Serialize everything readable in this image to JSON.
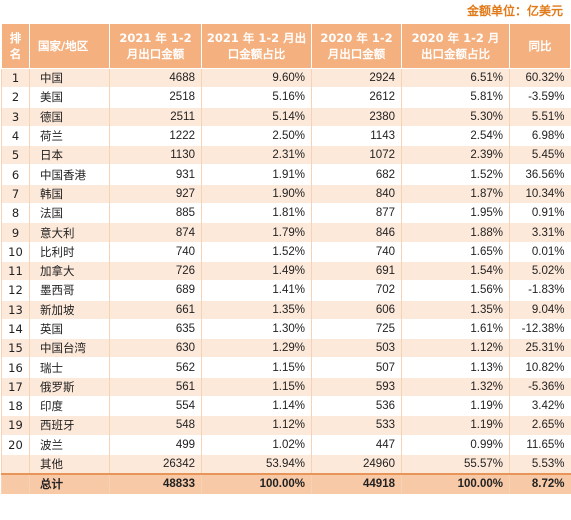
{
  "unit_label": "金额单位：亿美元",
  "headers": {
    "rank": "排名",
    "country": "国家/地区",
    "export_2021": "2021 年 1-2 月出口金额",
    "share_2021": "2021 年 1-2 月出口金额占比",
    "export_2020": "2020 年 1-2 月出口金额",
    "share_2020": "2020 年 1-2 月出口金额占比",
    "yoy": "同比"
  },
  "rows": [
    {
      "rank": "1",
      "country": "中国",
      "export_2021": "4688",
      "share_2021": "9.60%",
      "export_2020": "2924",
      "share_2020": "6.51%",
      "yoy": "60.32%"
    },
    {
      "rank": "2",
      "country": "美国",
      "export_2021": "2518",
      "share_2021": "5.16%",
      "export_2020": "2612",
      "share_2020": "5.81%",
      "yoy": "-3.59%"
    },
    {
      "rank": "3",
      "country": "德国",
      "export_2021": "2511",
      "share_2021": "5.14%",
      "export_2020": "2380",
      "share_2020": "5.30%",
      "yoy": "5.51%"
    },
    {
      "rank": "4",
      "country": "荷兰",
      "export_2021": "1222",
      "share_2021": "2.50%",
      "export_2020": "1143",
      "share_2020": "2.54%",
      "yoy": "6.98%"
    },
    {
      "rank": "5",
      "country": "日本",
      "export_2021": "1130",
      "share_2021": "2.31%",
      "export_2020": "1072",
      "share_2020": "2.39%",
      "yoy": "5.45%"
    },
    {
      "rank": "6",
      "country": "中国香港",
      "export_2021": "931",
      "share_2021": "1.91%",
      "export_2020": "682",
      "share_2020": "1.52%",
      "yoy": "36.56%"
    },
    {
      "rank": "7",
      "country": "韩国",
      "export_2021": "927",
      "share_2021": "1.90%",
      "export_2020": "840",
      "share_2020": "1.87%",
      "yoy": "10.34%"
    },
    {
      "rank": "8",
      "country": "法国",
      "export_2021": "885",
      "share_2021": "1.81%",
      "export_2020": "877",
      "share_2020": "1.95%",
      "yoy": "0.91%"
    },
    {
      "rank": "9",
      "country": "意大利",
      "export_2021": "874",
      "share_2021": "1.79%",
      "export_2020": "846",
      "share_2020": "1.88%",
      "yoy": "3.31%"
    },
    {
      "rank": "10",
      "country": "比利时",
      "export_2021": "740",
      "share_2021": "1.52%",
      "export_2020": "740",
      "share_2020": "1.65%",
      "yoy": "0.01%"
    },
    {
      "rank": "11",
      "country": "加拿大",
      "export_2021": "726",
      "share_2021": "1.49%",
      "export_2020": "691",
      "share_2020": "1.54%",
      "yoy": "5.02%"
    },
    {
      "rank": "12",
      "country": "墨西哥",
      "export_2021": "689",
      "share_2021": "1.41%",
      "export_2020": "702",
      "share_2020": "1.56%",
      "yoy": "-1.83%"
    },
    {
      "rank": "13",
      "country": "新加坡",
      "export_2021": "661",
      "share_2021": "1.35%",
      "export_2020": "606",
      "share_2020": "1.35%",
      "yoy": "9.04%"
    },
    {
      "rank": "14",
      "country": "英国",
      "export_2021": "635",
      "share_2021": "1.30%",
      "export_2020": "725",
      "share_2020": "1.61%",
      "yoy": "-12.38%"
    },
    {
      "rank": "15",
      "country": "中国台湾",
      "export_2021": "630",
      "share_2021": "1.29%",
      "export_2020": "503",
      "share_2020": "1.12%",
      "yoy": "25.31%"
    },
    {
      "rank": "16",
      "country": "瑞士",
      "export_2021": "562",
      "share_2021": "1.15%",
      "export_2020": "507",
      "share_2020": "1.13%",
      "yoy": "10.82%"
    },
    {
      "rank": "17",
      "country": "俄罗斯",
      "export_2021": "561",
      "share_2021": "1.15%",
      "export_2020": "593",
      "share_2020": "1.32%",
      "yoy": "-5.36%"
    },
    {
      "rank": "18",
      "country": "印度",
      "export_2021": "554",
      "share_2021": "1.14%",
      "export_2020": "536",
      "share_2020": "1.19%",
      "yoy": "3.42%"
    },
    {
      "rank": "19",
      "country": "西班牙",
      "export_2021": "548",
      "share_2021": "1.12%",
      "export_2020": "533",
      "share_2020": "1.19%",
      "yoy": "2.65%"
    },
    {
      "rank": "20",
      "country": "波兰",
      "export_2021": "499",
      "share_2021": "1.02%",
      "export_2020": "447",
      "share_2020": "0.99%",
      "yoy": "11.65%"
    }
  ],
  "other": {
    "country": "其他",
    "export_2021": "26342",
    "share_2021": "53.94%",
    "export_2020": "24960",
    "share_2020": "55.57%",
    "yoy": "5.53%"
  },
  "total": {
    "country": "总计",
    "export_2021": "48833",
    "share_2021": "100.00%",
    "export_2020": "44918",
    "share_2020": "100.00%",
    "yoy": "8.72%"
  }
}
